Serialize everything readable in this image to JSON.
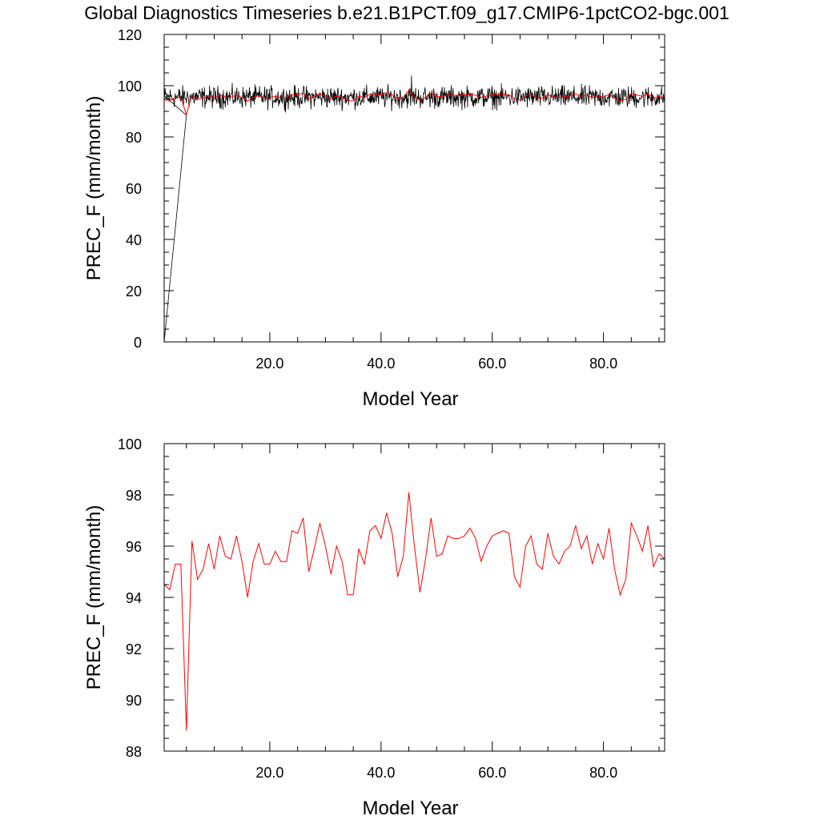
{
  "title": "Global Diagnostics Timeseries b.e21.B1PCT.f09_g17.CMIP6-1pctCO2-bgc.001",
  "colors": {
    "monthly_series": "#000000",
    "annual_series": "#ff0000",
    "axes": "#000000"
  },
  "chart_data": [
    {
      "type": "line",
      "xlabel": "Model Year",
      "ylabel": "PREC_F (mm/month)",
      "xlim": [
        1,
        91
      ],
      "ylim": [
        0,
        120
      ],
      "xticks": [
        "20.0",
        "40.0",
        "60.0",
        "80.0"
      ],
      "xtick_values": [
        20,
        40,
        60,
        80
      ],
      "yticks": [
        "0",
        "20",
        "40",
        "60",
        "80",
        "100",
        "120"
      ],
      "ytick_values": [
        0,
        20,
        40,
        60,
        80,
        100,
        120
      ],
      "grid": false,
      "series": [
        {
          "style": "monthly",
          "color": "#000000",
          "x": [
            1.0,
            5.0
          ],
          "y": [
            0.0,
            88.5
          ],
          "band": {
            "x_start": 1.08,
            "x_end": 91.0,
            "step_years": 0.0833,
            "mean": 95.5,
            "min": 89,
            "max": 104,
            "note_peak_year": 45.5
          }
        },
        {
          "style": "annual",
          "color": "#ff0000",
          "x": [
            1,
            2,
            3,
            4,
            5,
            6,
            7,
            8,
            9,
            10,
            11,
            12,
            13,
            14,
            15,
            16,
            17,
            18,
            19,
            20,
            21,
            22,
            23,
            24,
            25,
            26,
            27,
            28,
            29,
            30,
            31,
            32,
            33,
            34,
            35,
            36,
            37,
            38,
            39,
            40,
            41,
            42,
            43,
            44,
            45,
            46,
            47,
            48,
            49,
            50,
            51,
            52,
            53,
            54,
            55,
            56,
            57,
            58,
            59,
            60,
            61,
            62,
            63,
            64,
            65,
            66,
            67,
            68,
            69,
            70,
            71,
            72,
            73,
            74,
            75,
            76,
            77,
            78,
            79,
            80,
            81,
            82,
            83,
            84,
            85,
            86,
            87,
            88,
            89,
            90,
            91
          ],
          "y": [
            94.5,
            94.3,
            95.3,
            95.3,
            88.8,
            96.2,
            94.7,
            95.1,
            96.1,
            95.1,
            96.4,
            95.6,
            95.5,
            96.4,
            95.4,
            94.0,
            95.4,
            96.1,
            95.3,
            95.3,
            95.8,
            95.4,
            95.4,
            96.6,
            96.5,
            97.1,
            95.0,
            95.9,
            96.9,
            96.0,
            94.9,
            96.0,
            95.4,
            94.1,
            94.1,
            95.9,
            95.3,
            96.6,
            96.8,
            96.3,
            97.3,
            96.5,
            94.8,
            95.6,
            98.1,
            96.0,
            94.2,
            95.5,
            97.1,
            95.6,
            95.7,
            96.4,
            96.3,
            96.3,
            96.4,
            96.7,
            96.3,
            95.4,
            96.0,
            96.4,
            96.5,
            96.6,
            96.5,
            94.8,
            94.4,
            96.0,
            96.4,
            95.3,
            95.1,
            96.5,
            95.6,
            95.3,
            95.8,
            96.0,
            96.8,
            95.9,
            96.4,
            95.3,
            96.1,
            95.5,
            96.7,
            95.1,
            94.1,
            94.7,
            96.9,
            96.4,
            95.8,
            96.8,
            95.2,
            95.7,
            95.5
          ]
        }
      ]
    },
    {
      "type": "line",
      "xlabel": "Model Year",
      "ylabel": "PREC_F (mm/month)",
      "xlim": [
        1,
        91
      ],
      "ylim": [
        88,
        100
      ],
      "xticks": [
        "20.0",
        "40.0",
        "60.0",
        "80.0"
      ],
      "xtick_values": [
        20,
        40,
        60,
        80
      ],
      "yticks": [
        "88",
        "90",
        "92",
        "94",
        "96",
        "98",
        "100"
      ],
      "ytick_values": [
        88,
        90,
        92,
        94,
        96,
        98,
        100
      ],
      "grid": false,
      "series": [
        {
          "style": "annual",
          "color": "#ff0000",
          "x": [
            1,
            2,
            3,
            4,
            5,
            6,
            7,
            8,
            9,
            10,
            11,
            12,
            13,
            14,
            15,
            16,
            17,
            18,
            19,
            20,
            21,
            22,
            23,
            24,
            25,
            26,
            27,
            28,
            29,
            30,
            31,
            32,
            33,
            34,
            35,
            36,
            37,
            38,
            39,
            40,
            41,
            42,
            43,
            44,
            45,
            46,
            47,
            48,
            49,
            50,
            51,
            52,
            53,
            54,
            55,
            56,
            57,
            58,
            59,
            60,
            61,
            62,
            63,
            64,
            65,
            66,
            67,
            68,
            69,
            70,
            71,
            72,
            73,
            74,
            75,
            76,
            77,
            78,
            79,
            80,
            81,
            82,
            83,
            84,
            85,
            86,
            87,
            88,
            89,
            90,
            91
          ],
          "y": [
            94.5,
            94.3,
            95.3,
            95.3,
            88.8,
            96.2,
            94.7,
            95.1,
            96.1,
            95.1,
            96.4,
            95.6,
            95.5,
            96.4,
            95.4,
            94.0,
            95.4,
            96.1,
            95.3,
            95.3,
            95.8,
            95.4,
            95.4,
            96.6,
            96.5,
            97.1,
            95.0,
            95.9,
            96.9,
            96.0,
            94.9,
            96.0,
            95.4,
            94.1,
            94.1,
            95.9,
            95.3,
            96.6,
            96.8,
            96.3,
            97.3,
            96.5,
            94.8,
            95.6,
            98.1,
            96.0,
            94.2,
            95.5,
            97.1,
            95.6,
            95.7,
            96.4,
            96.3,
            96.3,
            96.4,
            96.7,
            96.3,
            95.4,
            96.0,
            96.4,
            96.5,
            96.6,
            96.5,
            94.8,
            94.4,
            96.0,
            96.4,
            95.3,
            95.1,
            96.5,
            95.6,
            95.3,
            95.8,
            96.0,
            96.8,
            95.9,
            96.4,
            95.3,
            96.1,
            95.5,
            96.7,
            95.1,
            94.1,
            94.7,
            96.9,
            96.4,
            95.8,
            96.8,
            95.2,
            95.7,
            95.5
          ]
        }
      ]
    }
  ]
}
